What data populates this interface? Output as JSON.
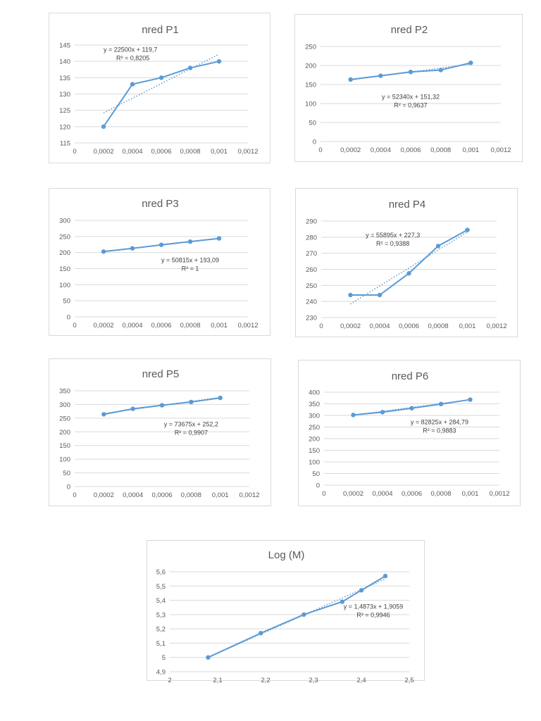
{
  "colors": {
    "series": "#5b9bd5",
    "grid": "#d9d9d9",
    "text": "#595959"
  },
  "chart_data": [
    {
      "type": "line",
      "title": "nred P1",
      "x": [
        0.0002,
        0.0004,
        0.0006,
        0.0008,
        0.001
      ],
      "y": [
        120,
        133,
        135,
        138,
        140
      ],
      "xlim": [
        0,
        0.0012
      ],
      "ylim": [
        115,
        145
      ],
      "x_ticks": [
        "0",
        "0,0002",
        "0,0004",
        "0,0006",
        "0,0008",
        "0,001",
        "0,0012"
      ],
      "y_ticks": [
        "115",
        "120",
        "125",
        "130",
        "135",
        "140",
        "145"
      ],
      "trendline": {
        "slope": 22500,
        "intercept": 119.7
      },
      "equation": "y = 22500x + 119,7",
      "r2": "R² = 0,8205"
    },
    {
      "type": "line",
      "title": "nred P2",
      "x": [
        0.0002,
        0.0004,
        0.0006,
        0.0008,
        0.001
      ],
      "y": [
        163,
        173,
        183,
        188,
        207
      ],
      "xlim": [
        0,
        0.0012
      ],
      "ylim": [
        0,
        250
      ],
      "x_ticks": [
        "0",
        "0,0002",
        "0,0004",
        "0,0006",
        "0,0008",
        "0,001",
        "0,0012"
      ],
      "y_ticks": [
        "0",
        "50",
        "100",
        "150",
        "200",
        "250"
      ],
      "trendline": {
        "slope": 52340,
        "intercept": 151.32
      },
      "equation": "y = 52340x + 151,32",
      "r2": "R² = 0,9637"
    },
    {
      "type": "line",
      "title": "nred P3",
      "x": [
        0.0002,
        0.0004,
        0.0006,
        0.0008,
        0.001
      ],
      "y": [
        203,
        213,
        224,
        234,
        244
      ],
      "xlim": [
        0,
        0.0012
      ],
      "ylim": [
        0,
        300
      ],
      "x_ticks": [
        "0",
        "0,0002",
        "0,0004",
        "0,0006",
        "0,0008",
        "0,001",
        "0,0012"
      ],
      "y_ticks": [
        "0",
        "50",
        "100",
        "150",
        "200",
        "250",
        "300"
      ],
      "trendline": {
        "slope": 50815,
        "intercept": 193.09
      },
      "equation": "y = 50815x + 193,09",
      "r2": "R² = 1"
    },
    {
      "type": "line",
      "title": "nred P4",
      "x": [
        0.0002,
        0.0004,
        0.0006,
        0.0008,
        0.001
      ],
      "y": [
        244,
        244,
        257.5,
        274.5,
        284.5
      ],
      "xlim": [
        0,
        0.0012
      ],
      "ylim": [
        230,
        290
      ],
      "x_ticks": [
        "0",
        "0,0002",
        "0,0004",
        "0,0006",
        "0,0008",
        "0,001",
        "0,0012"
      ],
      "y_ticks": [
        "230",
        "240",
        "250",
        "260",
        "270",
        "280",
        "290"
      ],
      "trendline": {
        "slope": 55895,
        "intercept": 227.3
      },
      "equation": "y = 55895x + 227,3",
      "r2": "R² = 0,9388"
    },
    {
      "type": "line",
      "title": "nred P5",
      "x": [
        0.0002,
        0.0004,
        0.0006,
        0.0008,
        0.001
      ],
      "y": [
        264,
        284,
        297,
        309,
        324
      ],
      "xlim": [
        0,
        0.0012
      ],
      "ylim": [
        0,
        350
      ],
      "x_ticks": [
        "0",
        "0,0002",
        "0,0004",
        "0,0006",
        "0,0008",
        "0,001",
        "0,0012"
      ],
      "y_ticks": [
        "0",
        "50",
        "100",
        "150",
        "200",
        "250",
        "300",
        "350"
      ],
      "trendline": {
        "slope": 73675,
        "intercept": 252.2
      },
      "equation": "y = 73675x + 252,2",
      "r2": "R² = 0,9907"
    },
    {
      "type": "line",
      "title": "nred P6",
      "x": [
        0.0002,
        0.0004,
        0.0006,
        0.0008,
        0.001
      ],
      "y": [
        302,
        314,
        331,
        349,
        368
      ],
      "xlim": [
        0,
        0.0012
      ],
      "ylim": [
        0,
        400
      ],
      "x_ticks": [
        "0",
        "0,0002",
        "0,0004",
        "0,0006",
        "0,0008",
        "0,001",
        "0,0012"
      ],
      "y_ticks": [
        "0",
        "50",
        "100",
        "150",
        "200",
        "250",
        "300",
        "350",
        "400"
      ],
      "trendline": {
        "slope": 82825,
        "intercept": 284.79
      },
      "equation": "y = 82825x + 284,79",
      "r2": "R² = 0,9883"
    },
    {
      "type": "line",
      "title": "Log (M)",
      "x": [
        2.08,
        2.19,
        2.28,
        2.36,
        2.4,
        2.45
      ],
      "y": [
        5.0,
        5.17,
        5.3,
        5.39,
        5.47,
        5.57
      ],
      "xlim": [
        2,
        2.5
      ],
      "ylim": [
        4.9,
        5.6
      ],
      "x_ticks": [
        "2",
        "2,1",
        "2,2",
        "2,3",
        "2,4",
        "2,5"
      ],
      "y_ticks": [
        "4,9",
        "5",
        "5,1",
        "5,2",
        "5,3",
        "5,4",
        "5,5",
        "5,6"
      ],
      "trendline": {
        "slope": 1.4873,
        "intercept": 1.9059
      },
      "equation": "y = 1,4873x + 1,9059",
      "r2": "R² = 0,9946"
    }
  ]
}
